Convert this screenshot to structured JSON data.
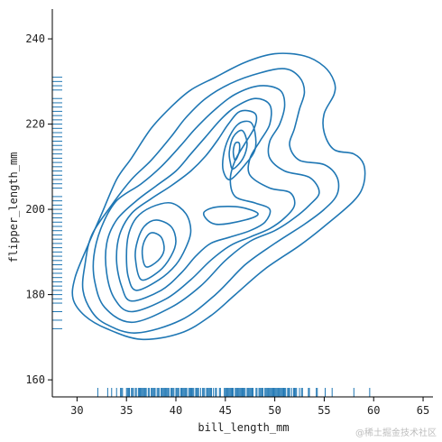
{
  "chart_data": {
    "type": "kde-contour-with-rug",
    "xlabel": "bill_length_mm",
    "ylabel": "flipper_length_mm",
    "xlim": [
      27.5,
      66
    ],
    "ylim": [
      156,
      247
    ],
    "xticks": [
      30,
      35,
      40,
      45,
      50,
      55,
      60,
      65
    ],
    "yticks": [
      160,
      180,
      200,
      220,
      240
    ],
    "grid": false,
    "color": "#1f77b4",
    "contours": [
      {
        "level": 1,
        "points": [
          [
            36.5,
            169.5
          ],
          [
            40.5,
            171
          ],
          [
            43.5,
            175
          ],
          [
            46,
            180
          ],
          [
            49,
            186
          ],
          [
            52.5,
            191.5
          ],
          [
            55,
            196
          ],
          [
            58,
            202
          ],
          [
            59,
            206
          ],
          [
            59,
            210.5
          ],
          [
            58,
            213
          ],
          [
            56,
            214
          ],
          [
            55,
            218
          ],
          [
            55,
            222.5
          ],
          [
            56,
            227
          ],
          [
            56,
            230
          ],
          [
            55,
            233.5
          ],
          [
            53,
            236
          ],
          [
            50,
            236.5
          ],
          [
            47,
            234.5
          ],
          [
            44,
            231
          ],
          [
            41.5,
            228
          ],
          [
            39.5,
            224
          ],
          [
            37.5,
            219
          ],
          [
            35.5,
            212
          ],
          [
            34,
            207
          ],
          [
            32.5,
            199
          ],
          [
            31,
            191
          ],
          [
            29.8,
            184
          ],
          [
            29.6,
            179
          ],
          [
            30.8,
            175
          ],
          [
            33,
            172
          ],
          [
            36.5,
            169.5
          ]
        ]
      },
      {
        "level": 2,
        "points": [
          [
            36,
            171
          ],
          [
            40.5,
            174
          ],
          [
            44,
            180
          ],
          [
            47,
            187
          ],
          [
            50,
            192
          ],
          [
            53,
            196.5
          ],
          [
            55,
            200
          ],
          [
            56.3,
            203.5
          ],
          [
            56.3,
            207.5
          ],
          [
            55,
            210.5
          ],
          [
            52.5,
            211.5
          ],
          [
            51.5,
            215
          ],
          [
            52,
            219
          ],
          [
            52.5,
            223.5
          ],
          [
            53,
            227.5
          ],
          [
            52.5,
            231
          ],
          [
            51,
            233
          ],
          [
            48.5,
            232
          ],
          [
            45.5,
            229.5
          ],
          [
            43,
            226
          ],
          [
            41,
            221.5
          ],
          [
            39.5,
            217
          ],
          [
            37.5,
            211.5
          ],
          [
            35.5,
            207
          ],
          [
            33.5,
            201
          ],
          [
            31.5,
            194
          ],
          [
            30.8,
            187
          ],
          [
            30.6,
            181
          ],
          [
            31.5,
            176
          ],
          [
            33,
            173
          ],
          [
            36,
            171
          ]
        ]
      },
      {
        "level": 3,
        "points": [
          [
            35.5,
            173.5
          ],
          [
            39.5,
            177
          ],
          [
            42.5,
            182
          ],
          [
            45,
            188
          ],
          [
            47.5,
            192.5
          ],
          [
            50,
            195
          ],
          [
            52,
            198
          ],
          [
            53.5,
            201
          ],
          [
            54.5,
            204
          ],
          [
            53.5,
            207.5
          ],
          [
            51,
            209
          ],
          [
            49.5,
            212
          ],
          [
            49.5,
            216
          ],
          [
            50.5,
            220
          ],
          [
            51,
            224.5
          ],
          [
            50.5,
            228
          ],
          [
            48.5,
            229
          ],
          [
            46,
            227
          ],
          [
            44,
            223.5
          ],
          [
            42,
            219
          ],
          [
            40.5,
            215
          ],
          [
            38.5,
            210
          ],
          [
            36.5,
            206
          ],
          [
            34,
            202
          ],
          [
            32.5,
            196
          ],
          [
            31.7,
            189
          ],
          [
            31.8,
            183
          ],
          [
            32.8,
            177
          ],
          [
            35.5,
            173.5
          ]
        ]
      },
      {
        "level": 4,
        "points": [
          [
            35.5,
            176
          ],
          [
            39,
            179
          ],
          [
            41.5,
            183.5
          ],
          [
            43.5,
            188
          ],
          [
            45.5,
            191.5
          ],
          [
            47.5,
            193.5
          ],
          [
            49.5,
            195.5
          ],
          [
            51,
            198
          ],
          [
            52,
            201
          ],
          [
            51.5,
            204
          ],
          [
            49.5,
            205
          ],
          [
            47.5,
            208
          ],
          [
            47.5,
            212
          ],
          [
            48.5,
            216
          ],
          [
            49.5,
            220
          ],
          [
            49.5,
            224.5
          ],
          [
            48,
            226
          ],
          [
            46,
            224
          ],
          [
            44.5,
            221
          ],
          [
            43,
            217
          ],
          [
            41.5,
            213
          ],
          [
            40,
            209
          ],
          [
            38,
            205.5
          ],
          [
            36,
            202
          ],
          [
            34,
            197.5
          ],
          [
            33,
            192
          ],
          [
            33,
            185
          ],
          [
            33.8,
            179
          ],
          [
            35.5,
            176
          ]
        ]
      },
      {
        "level": 5,
        "points": [
          [
            35.5,
            178.5
          ],
          [
            38.5,
            181
          ],
          [
            40.5,
            185
          ],
          [
            42,
            189
          ],
          [
            43.5,
            192
          ],
          [
            45.5,
            193.5
          ],
          [
            47.5,
            195
          ],
          [
            49,
            197
          ],
          [
            49.5,
            200
          ],
          [
            48,
            201.5
          ],
          [
            46,
            203
          ],
          [
            45.5,
            207
          ],
          [
            46,
            211.5
          ],
          [
            47,
            215.5
          ],
          [
            48,
            219.5
          ],
          [
            48,
            222.5
          ],
          [
            46.5,
            223
          ],
          [
            45.3,
            220
          ],
          [
            44.3,
            216.5
          ],
          [
            43,
            212.5
          ],
          [
            41.5,
            209
          ],
          [
            39.5,
            205.5
          ],
          [
            37.5,
            202.5
          ],
          [
            35.5,
            199
          ],
          [
            34.3,
            194
          ],
          [
            34,
            188
          ],
          [
            34.5,
            182
          ],
          [
            35.5,
            178.5
          ]
        ]
      },
      {
        "level": 6,
        "points": [
          [
            36,
            181
          ],
          [
            38.3,
            183.5
          ],
          [
            40,
            187
          ],
          [
            41,
            191
          ],
          [
            41.5,
            195
          ],
          [
            41,
            199
          ],
          [
            39.5,
            201.5
          ],
          [
            37.5,
            200.5
          ],
          [
            36,
            198
          ],
          [
            35.2,
            194
          ],
          [
            35,
            189
          ],
          [
            35.2,
            184
          ],
          [
            36,
            181
          ]
        ]
      },
      {
        "level": 6,
        "points": [
          [
            45.5,
            207
          ],
          [
            47,
            210.5
          ],
          [
            48,
            214
          ],
          [
            48,
            218
          ],
          [
            47.5,
            220.5
          ],
          [
            46.3,
            220
          ],
          [
            45.3,
            216.5
          ],
          [
            44.8,
            212.5
          ],
          [
            44.8,
            209
          ],
          [
            45.5,
            207
          ]
        ]
      },
      {
        "level": 6,
        "points": [
          [
            44,
            196.5
          ],
          [
            47,
            197.5
          ],
          [
            48.3,
            199
          ],
          [
            46.5,
            200.5
          ],
          [
            44,
            200.5
          ],
          [
            42.8,
            199
          ],
          [
            44,
            196.5
          ]
        ]
      },
      {
        "level": 7,
        "points": [
          [
            36.5,
            183.5
          ],
          [
            38.3,
            185.5
          ],
          [
            39.5,
            189
          ],
          [
            40,
            192.5
          ],
          [
            39.5,
            196
          ],
          [
            38,
            197.5
          ],
          [
            36.8,
            196
          ],
          [
            36.1,
            192.5
          ],
          [
            35.9,
            188.5
          ],
          [
            36.5,
            183.5
          ]
        ]
      },
      {
        "level": 7,
        "points": [
          [
            45.8,
            209.5
          ],
          [
            46.8,
            212
          ],
          [
            47.2,
            215.5
          ],
          [
            46.7,
            218.5
          ],
          [
            45.8,
            217
          ],
          [
            45.4,
            213.5
          ],
          [
            45.5,
            211
          ],
          [
            45.8,
            209.5
          ]
        ]
      },
      {
        "level": 8,
        "points": [
          [
            37,
            186.5
          ],
          [
            38.2,
            188
          ],
          [
            38.8,
            190.5
          ],
          [
            38.5,
            193.5
          ],
          [
            37.5,
            194.5
          ],
          [
            36.8,
            192.5
          ],
          [
            36.6,
            189.5
          ],
          [
            37,
            186.5
          ]
        ]
      },
      {
        "level": 8,
        "points": [
          [
            46,
            211.5
          ],
          [
            46.4,
            213.5
          ],
          [
            46.4,
            215.5
          ],
          [
            46,
            215.5
          ],
          [
            45.8,
            213.5
          ],
          [
            46,
            211.5
          ]
        ]
      }
    ],
    "rug_x": [
      32.1,
      33.1,
      33.5,
      34,
      34.4,
      34.5,
      34.6,
      35,
      35.1,
      35.2,
      35.3,
      35.5,
      35.6,
      35.7,
      35.9,
      36,
      36.2,
      36.3,
      36.4,
      36.5,
      36.6,
      36.7,
      36.8,
      36.9,
      37,
      37.2,
      37.3,
      37.5,
      37.6,
      37.7,
      37.8,
      37.9,
      38.1,
      38.2,
      38.3,
      38.5,
      38.6,
      38.7,
      38.8,
      38.9,
      39,
      39.1,
      39.2,
      39.3,
      39.5,
      39.6,
      39.7,
      39.8,
      40,
      40.1,
      40.2,
      40.3,
      40.5,
      40.6,
      40.7,
      40.8,
      40.9,
      41,
      41.1,
      41.3,
      41.4,
      41.5,
      41.6,
      41.7,
      41.8,
      42,
      42.1,
      42.2,
      42.3,
      42.5,
      42.7,
      42.8,
      42.9,
      43.1,
      43.2,
      43.3,
      43.4,
      43.5,
      43.6,
      43.8,
      44,
      44.1,
      44.4,
      44.5,
      44.9,
      45,
      45.1,
      45.2,
      45.3,
      45.4,
      45.5,
      45.6,
      45.7,
      45.8,
      46,
      46.1,
      46.2,
      46.3,
      46.4,
      46.5,
      46.6,
      46.7,
      46.8,
      46.9,
      47,
      47.2,
      47.3,
      47.4,
      47.5,
      47.6,
      47.7,
      47.8,
      48.1,
      48.2,
      48.4,
      48.5,
      48.6,
      48.7,
      48.8,
      49,
      49.1,
      49.2,
      49.3,
      49.4,
      49.5,
      49.6,
      49.7,
      49.8,
      49.9,
      50,
      50.1,
      50.2,
      50.3,
      50.4,
      50.5,
      50.6,
      50.7,
      50.8,
      50.9,
      51,
      51.1,
      51.3,
      51.4,
      51.5,
      51.7,
      51.9,
      52,
      52.1,
      52.2,
      52.5,
      52.7,
      52.8,
      53.4,
      53.5,
      54.2,
      54.3,
      55.1,
      55.8,
      58,
      59.6
    ],
    "rug_y": [
      172,
      174,
      176,
      178,
      179,
      180,
      181,
      182,
      183,
      184,
      185,
      186,
      187,
      188,
      189,
      190,
      191,
      192,
      193,
      194,
      195,
      196,
      197,
      198,
      199,
      200,
      201,
      202,
      203,
      205,
      206,
      207,
      208,
      209,
      210,
      211,
      212,
      213,
      214,
      215,
      216,
      217,
      218,
      219,
      220,
      221,
      222,
      223,
      224,
      225,
      226,
      228,
      229,
      230,
      231
    ]
  },
  "watermark": "@稀土掘金技术社区"
}
